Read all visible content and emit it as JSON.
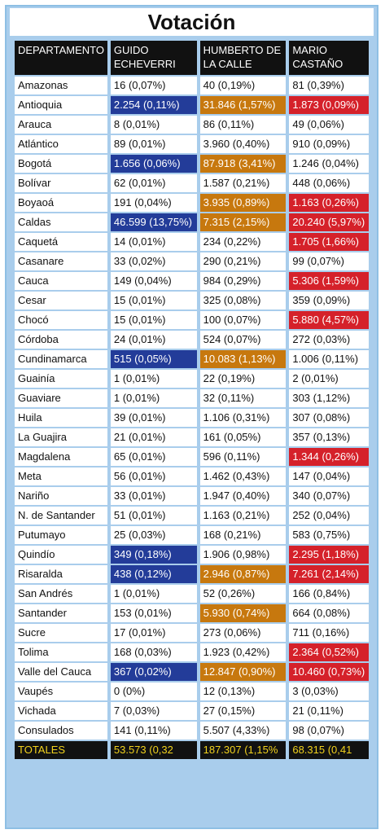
{
  "title": "Votación",
  "headers": [
    "DEPARTAMENTO",
    "GUIDO ECHEVERRI",
    "HUMBERTO DE LA CALLE",
    "MARIO CASTAÑO"
  ],
  "colors": {
    "blue": "#233c99",
    "orange": "#c7780e",
    "red": "#d5212a",
    "frame": "#a9cdec",
    "totals_text": "#f2d21d"
  },
  "rows": [
    {
      "dept": "Amazonas",
      "guido": "16 (0,07%)",
      "humberto": "40 (0,19%)",
      "mario": "81 (0,39%)",
      "hl": [
        "",
        "",
        ""
      ]
    },
    {
      "dept": "Antioquia",
      "guido": "2.254 (0,11%)",
      "humberto": "31.846 (1,57%)",
      "mario": "1.873 (0,09%)",
      "hl": [
        "blue",
        "orange",
        "red"
      ]
    },
    {
      "dept": "Arauca",
      "guido": "8 (0,01%)",
      "humberto": "86 (0,11%)",
      "mario": "49 (0,06%)",
      "hl": [
        "",
        "",
        ""
      ]
    },
    {
      "dept": "Atlántico",
      "guido": "89 (0,01%)",
      "humberto": "3.960 (0,40%)",
      "mario": "910 (0,09%)",
      "hl": [
        "",
        "",
        ""
      ]
    },
    {
      "dept": "Bogotá",
      "guido": "1.656 (0,06%)",
      "humberto": "87.918 (3,41%)",
      "mario": "1.246 (0,04%)",
      "hl": [
        "blue",
        "orange",
        ""
      ]
    },
    {
      "dept": "Bolívar",
      "guido": "62 (0,01%)",
      "humberto": "1.587 (0,21%)",
      "mario": "448 (0,06%)",
      "hl": [
        "",
        "",
        ""
      ]
    },
    {
      "dept": "Boyaoá",
      "guido": "191 (0,04%)",
      "humberto": "3.935 (0,89%)",
      "mario": "1.163 (0,26%)",
      "hl": [
        "",
        "orange",
        "red"
      ]
    },
    {
      "dept": "Caldas",
      "guido": "46.599 (13,75%)",
      "humberto": "7.315 (2,15%)",
      "mario": "20.240 (5,97%)",
      "hl": [
        "blue",
        "orange",
        "red"
      ]
    },
    {
      "dept": "Caquetá",
      "guido": "14 (0,01%)",
      "humberto": "234 (0,22%)",
      "mario": "1.705 (1,66%)",
      "hl": [
        "",
        "",
        "red"
      ]
    },
    {
      "dept": "Casanare",
      "guido": "33 (0,02%)",
      "humberto": "290 (0,21%)",
      "mario": "99 (0,07%)",
      "hl": [
        "",
        "",
        ""
      ]
    },
    {
      "dept": "Cauca",
      "guido": "149 (0,04%)",
      "humberto": "984 (0,29%)",
      "mario": "5.306 (1,59%)",
      "hl": [
        "",
        "",
        "red"
      ]
    },
    {
      "dept": "Cesar",
      "guido": "15 (0,01%)",
      "humberto": "325 (0,08%)",
      "mario": "359 (0,09%)",
      "hl": [
        "",
        "",
        ""
      ]
    },
    {
      "dept": "Chocó",
      "guido": "15 (0,01%)",
      "humberto": "100 (0,07%)",
      "mario": "5.880 (4,57%)",
      "hl": [
        "",
        "",
        "red"
      ]
    },
    {
      "dept": "Córdoba",
      "guido": "24 (0,01%)",
      "humberto": "524 (0,07%)",
      "mario": "272 (0,03%)",
      "hl": [
        "",
        "",
        ""
      ]
    },
    {
      "dept": "Cundinamarca",
      "guido": "515 (0,05%)",
      "humberto": "10.083 (1,13%)",
      "mario": "1.006 (0,11%)",
      "hl": [
        "blue",
        "orange",
        ""
      ]
    },
    {
      "dept": "Guainía",
      "guido": "1 (0,01%)",
      "humberto": "22 (0,19%)",
      "mario": "2 (0,01%)",
      "hl": [
        "",
        "",
        ""
      ]
    },
    {
      "dept": "Guaviare",
      "guido": "1 (0,01%)",
      "humberto": "32 (0,11%)",
      "mario": "303 (1,12%)",
      "hl": [
        "",
        "",
        ""
      ]
    },
    {
      "dept": "Huila",
      "guido": "39 (0,01%)",
      "humberto": "1.106 (0,31%)",
      "mario": "307 (0,08%)",
      "hl": [
        "",
        "",
        ""
      ]
    },
    {
      "dept": "La Guajira",
      "guido": "21 (0,01%)",
      "humberto": "161 (0,05%)",
      "mario": "357 (0,13%)",
      "hl": [
        "",
        "",
        ""
      ]
    },
    {
      "dept": "Magdalena",
      "guido": "65 (0,01%)",
      "humberto": "596 (0,11%)",
      "mario": "1.344 (0,26%)",
      "hl": [
        "",
        "",
        "red"
      ]
    },
    {
      "dept": "Meta",
      "guido": "56 (0,01%)",
      "humberto": "1.462 (0,43%)",
      "mario": "147 (0,04%)",
      "hl": [
        "",
        "",
        ""
      ]
    },
    {
      "dept": "Nariño",
      "guido": "33 (0,01%)",
      "humberto": "1.947 (0,40%)",
      "mario": "340 (0,07%)",
      "hl": [
        "",
        "",
        ""
      ]
    },
    {
      "dept": "N. de Santander",
      "guido": "51 (0,01%)",
      "humberto": "1.163 (0,21%)",
      "mario": "252 (0,04%)",
      "hl": [
        "",
        "",
        ""
      ]
    },
    {
      "dept": "Putumayo",
      "guido": "25 (0,03%)",
      "humberto": "168 (0,21%)",
      "mario": "583 (0,75%)",
      "hl": [
        "",
        "",
        ""
      ]
    },
    {
      "dept": "Quindío",
      "guido": "349 (0,18%)",
      "humberto": "1.906 (0,98%)",
      "mario": "2.295 (1,18%)",
      "hl": [
        "blue",
        "",
        "red"
      ]
    },
    {
      "dept": "Risaralda",
      "guido": "438 (0,12%)",
      "humberto": "2.946 (0,87%)",
      "mario": "7.261 (2,14%)",
      "hl": [
        "blue",
        "orange",
        "red"
      ]
    },
    {
      "dept": "San Andrés",
      "guido": "1 (0,01%)",
      "humberto": "52 (0,26%)",
      "mario": "166 (0,84%)",
      "hl": [
        "",
        "",
        ""
      ]
    },
    {
      "dept": "Santander",
      "guido": "153 (0,01%)",
      "humberto": "5.930 (0,74%)",
      "mario": "664 (0,08%)",
      "hl": [
        "",
        "orange",
        ""
      ]
    },
    {
      "dept": "Sucre",
      "guido": "17 (0,01%)",
      "humberto": "273 (0,06%)",
      "mario": "711 (0,16%)",
      "hl": [
        "",
        "",
        ""
      ]
    },
    {
      "dept": "Tolima",
      "guido": "168 (0,03%)",
      "humberto": "1.923 (0,42%)",
      "mario": "2.364 (0,52%)",
      "hl": [
        "",
        "",
        "red"
      ]
    },
    {
      "dept": "Valle del Cauca",
      "guido": "367 (0,02%)",
      "humberto": "12.847 (0,90%)",
      "mario": "10.460 (0,73%)",
      "hl": [
        "blue",
        "orange",
        "red"
      ]
    },
    {
      "dept": "Vaupés",
      "guido": "0 (0%)",
      "humberto": "12 (0,13%)",
      "mario": "3 (0,03%)",
      "hl": [
        "",
        "",
        ""
      ]
    },
    {
      "dept": "Vichada",
      "guido": "7 (0,03%)",
      "humberto": "27 (0,15%)",
      "mario": "21 (0,11%)",
      "hl": [
        "",
        "",
        ""
      ]
    },
    {
      "dept": "Consulados",
      "guido": "141 (0,11%)",
      "humberto": "5.507 (4,33%)",
      "mario": "98 (0,07%)",
      "hl": [
        "",
        "",
        ""
      ]
    }
  ],
  "totals": {
    "dept": "TOTALES",
    "guido": "53.573 (0,32",
    "humberto": "187.307 (1,15%",
    "mario": "68.315 (0,41"
  }
}
